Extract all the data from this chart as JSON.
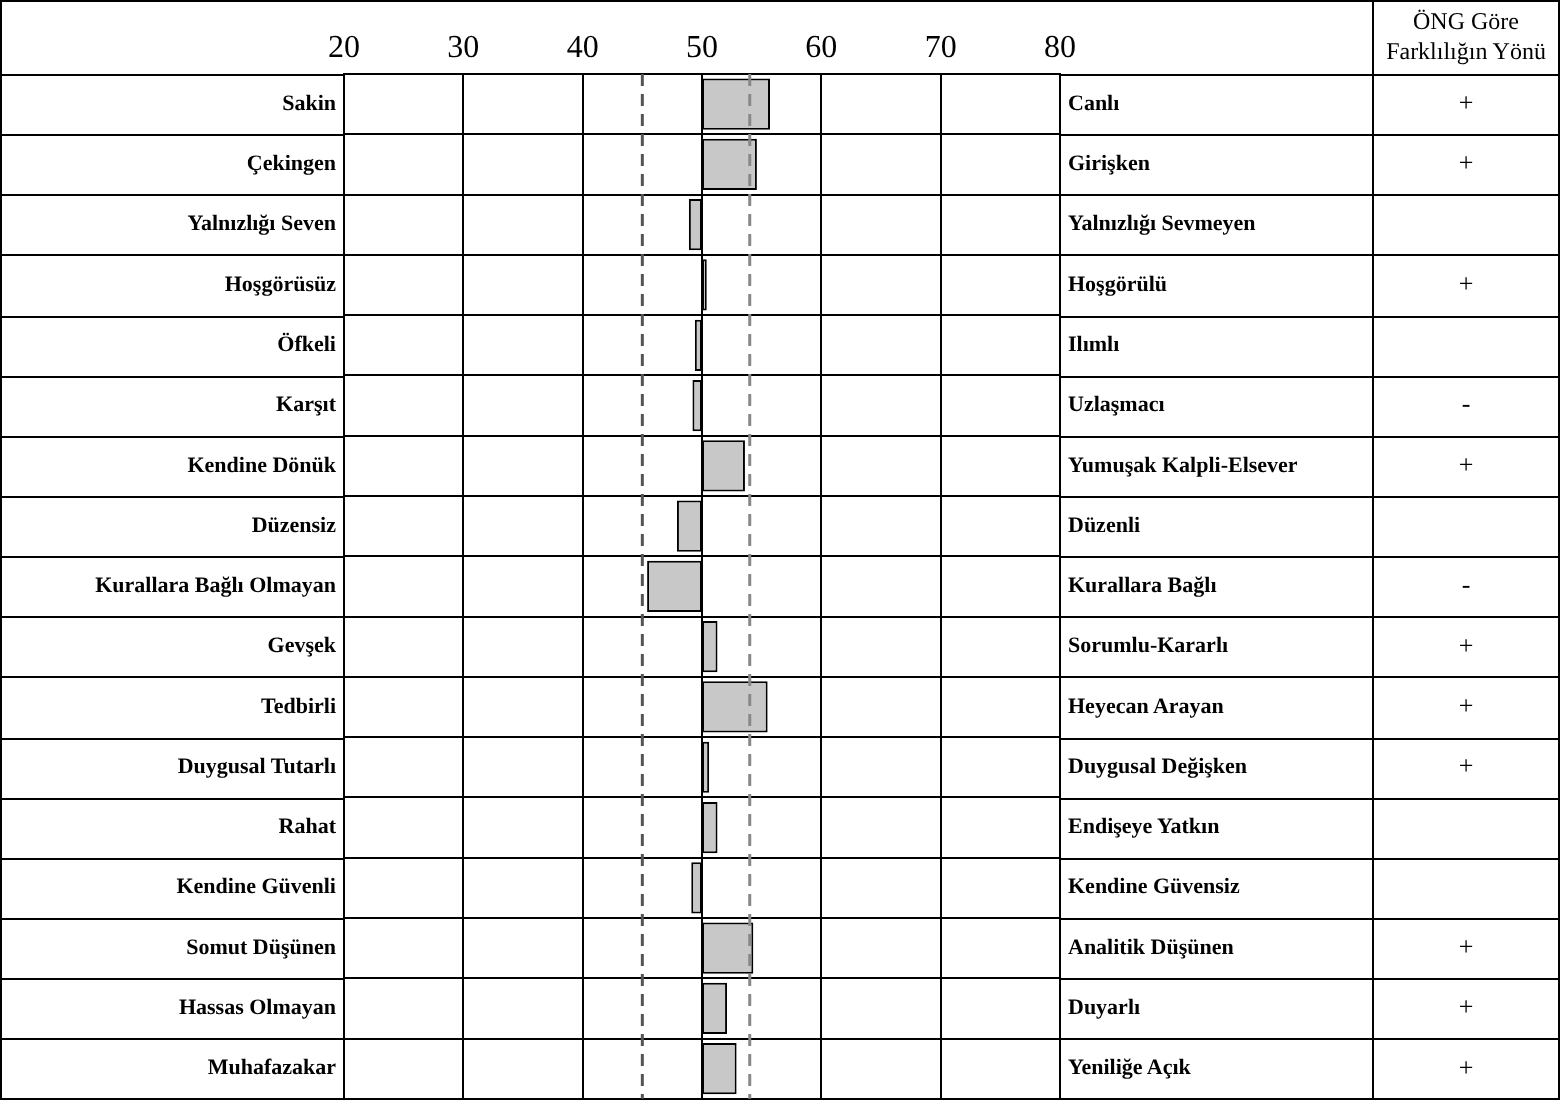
{
  "chart_data": {
    "type": "bar",
    "orientation": "horizontal",
    "categories": [
      "Sakin",
      "Çekingen",
      "Yalnızlığı Seven",
      "Hoşgörüsüz",
      "Öfkeli",
      "Karşıt",
      "Kendine Dönük",
      "Düzensiz",
      "Kurallara Bağlı Olmayan",
      "Gevşek",
      "Tedbirli",
      "Duygusal Tutarlı",
      "Rahat",
      "Kendine Güvenli",
      "Somut Düşünen",
      "Hassas Olmayan",
      "Muhafazakar"
    ],
    "y2_categories": [
      "Canlı",
      "Girişken",
      "Yalnızlığı Sevmeyen",
      "Hoşgörülü",
      "Ilımlı",
      "Uzlaşmacı",
      "Yumuşak Kalpli-Elsever",
      "Düzenli",
      "Kurallara Bağlı",
      "Sorumlu-Kararlı",
      "Heyecan Arayan",
      "Duygusal Değişken",
      "Endişeye Yatkın",
      "Kendine Güvensiz",
      "Analitik Düşünen",
      "Duyarlı",
      "Yeniliğe Açık"
    ],
    "base": [
      50,
      50,
      50,
      50,
      50,
      50,
      50,
      50,
      50,
      50,
      50,
      50,
      50,
      50,
      50,
      50,
      50
    ],
    "values": [
      5.7,
      4.6,
      -1.1,
      0.4,
      -0.6,
      -0.8,
      3.6,
      -2.1,
      -4.6,
      1.3,
      5.5,
      0.6,
      1.3,
      -0.9,
      4.3,
      2.1,
      2.9
    ],
    "color": "#c8c8c8",
    "xlim": [
      20,
      80
    ],
    "xticks": [
      20,
      30,
      40,
      50,
      60,
      70,
      80
    ],
    "grid": true,
    "ref_lines": [
      {
        "axis": "x",
        "value": 45,
        "color": "#555555",
        "line_style": "dashed"
      },
      {
        "axis": "x",
        "value": 54,
        "color": "#888888",
        "line_style": "dashed"
      }
    ],
    "value_labels": [
      "+",
      "+",
      null,
      "+",
      null,
      "-",
      "+",
      null,
      "-",
      "+",
      "+",
      "+",
      null,
      null,
      "+",
      "+",
      "+"
    ],
    "annotations": [
      "ÖNG Göre Farklılığın Yönü"
    ]
  }
}
